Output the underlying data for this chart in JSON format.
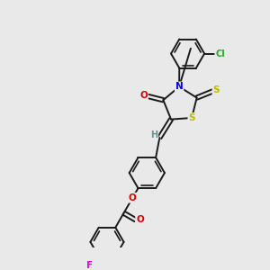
{
  "background_color": "#e9e9e9",
  "bond_color": "#1a1a1a",
  "atom_colors": {
    "O": "#dd0000",
    "N": "#0000ee",
    "S": "#bbbb00",
    "Cl": "#22aa22",
    "F": "#ee00ee",
    "C": "#1a1a1a",
    "H": "#6a9090"
  },
  "figsize": [
    3.0,
    3.0
  ],
  "dpi": 100
}
